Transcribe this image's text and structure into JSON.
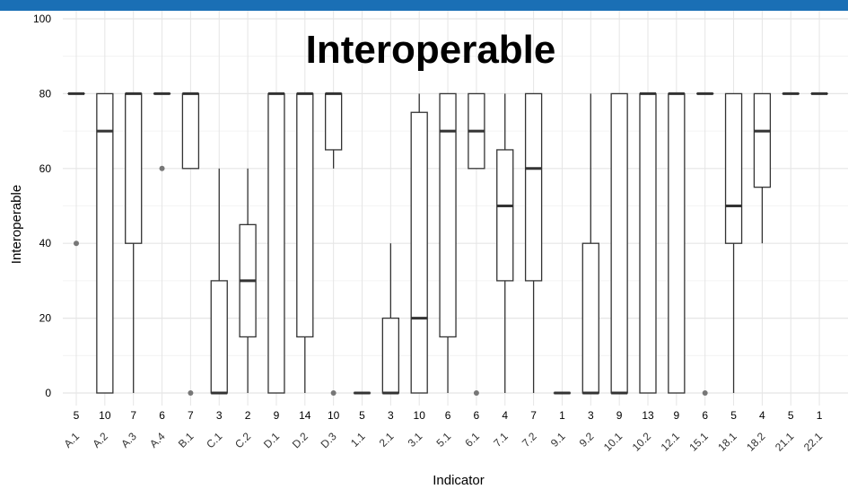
{
  "header": {
    "bar_color": "#1a6fb5"
  },
  "chart_data": {
    "type": "box",
    "title": "Interoperable",
    "xlabel": "Indicator",
    "ylabel": "Interoperable",
    "ylim": [
      0,
      100
    ],
    "yticks": [
      0,
      20,
      40,
      60,
      80,
      100
    ],
    "grid": true,
    "categories": [
      "A.1",
      "A.2",
      "A.3",
      "A.4",
      "B.1",
      "C.1",
      "C.2",
      "D.1",
      "D.2",
      "D.3",
      "1.1",
      "2.1",
      "3.1",
      "5.1",
      "6.1",
      "7.1",
      "7.2",
      "9.1",
      "9.2",
      "10.1",
      "10.2",
      "12.1",
      "15.1",
      "18.1",
      "18.2",
      "21.1",
      "22.1"
    ],
    "counts": [
      "5",
      "10",
      "7",
      "6",
      "7",
      "3",
      "2",
      "9",
      "14",
      "10",
      "5",
      "3",
      "10",
      "6",
      "6",
      "4",
      "7",
      "1",
      "3",
      "9",
      "13",
      "9",
      "6",
      "5",
      "4",
      "5",
      "1"
    ],
    "boxes": [
      {
        "q1": 80,
        "median": 80,
        "q3": 80,
        "whisker_low": 80,
        "whisker_high": 80,
        "outliers": [
          40
        ]
      },
      {
        "q1": 0,
        "median": 70,
        "q3": 80,
        "whisker_low": 0,
        "whisker_high": 80,
        "outliers": []
      },
      {
        "q1": 40,
        "median": 80,
        "q3": 80,
        "whisker_low": 0,
        "whisker_high": 80,
        "outliers": []
      },
      {
        "q1": 80,
        "median": 80,
        "q3": 80,
        "whisker_low": 80,
        "whisker_high": 80,
        "outliers": [
          60
        ]
      },
      {
        "q1": 60,
        "median": 80,
        "q3": 80,
        "whisker_low": 60,
        "whisker_high": 80,
        "outliers": [
          0
        ]
      },
      {
        "q1": 0,
        "median": 0,
        "q3": 30,
        "whisker_low": 0,
        "whisker_high": 60,
        "outliers": []
      },
      {
        "q1": 15,
        "median": 30,
        "q3": 45,
        "whisker_low": 0,
        "whisker_high": 60,
        "outliers": []
      },
      {
        "q1": 0,
        "median": 80,
        "q3": 80,
        "whisker_low": 0,
        "whisker_high": 80,
        "outliers": []
      },
      {
        "q1": 15,
        "median": 80,
        "q3": 80,
        "whisker_low": 0,
        "whisker_high": 80,
        "outliers": []
      },
      {
        "q1": 65,
        "median": 80,
        "q3": 80,
        "whisker_low": 60,
        "whisker_high": 80,
        "outliers": [
          0
        ]
      },
      {
        "q1": 0,
        "median": 0,
        "q3": 0,
        "whisker_low": 0,
        "whisker_high": 0,
        "outliers": []
      },
      {
        "q1": 0,
        "median": 0,
        "q3": 20,
        "whisker_low": 0,
        "whisker_high": 40,
        "outliers": []
      },
      {
        "q1": 0,
        "median": 20,
        "q3": 75,
        "whisker_low": 0,
        "whisker_high": 80,
        "outliers": []
      },
      {
        "q1": 15,
        "median": 70,
        "q3": 80,
        "whisker_low": 0,
        "whisker_high": 80,
        "outliers": []
      },
      {
        "q1": 60,
        "median": 70,
        "q3": 80,
        "whisker_low": 60,
        "whisker_high": 80,
        "outliers": [
          0
        ]
      },
      {
        "q1": 30,
        "median": 50,
        "q3": 65,
        "whisker_low": 0,
        "whisker_high": 80,
        "outliers": []
      },
      {
        "q1": 30,
        "median": 60,
        "q3": 80,
        "whisker_low": 0,
        "whisker_high": 80,
        "outliers": []
      },
      {
        "q1": 0,
        "median": 0,
        "q3": 0,
        "whisker_low": 0,
        "whisker_high": 0,
        "outliers": []
      },
      {
        "q1": 0,
        "median": 0,
        "q3": 40,
        "whisker_low": 0,
        "whisker_high": 80,
        "outliers": []
      },
      {
        "q1": 0,
        "median": 0,
        "q3": 80,
        "whisker_low": 0,
        "whisker_high": 80,
        "outliers": []
      },
      {
        "q1": 0,
        "median": 80,
        "q3": 80,
        "whisker_low": 0,
        "whisker_high": 80,
        "outliers": []
      },
      {
        "q1": 0,
        "median": 80,
        "q3": 80,
        "whisker_low": 0,
        "whisker_high": 80,
        "outliers": []
      },
      {
        "q1": 80,
        "median": 80,
        "q3": 80,
        "whisker_low": 80,
        "whisker_high": 80,
        "outliers": [
          0
        ]
      },
      {
        "q1": 40,
        "median": 50,
        "q3": 80,
        "whisker_low": 0,
        "whisker_high": 80,
        "outliers": []
      },
      {
        "q1": 55,
        "median": 70,
        "q3": 80,
        "whisker_low": 40,
        "whisker_high": 80,
        "outliers": []
      },
      {
        "q1": 80,
        "median": 80,
        "q3": 80,
        "whisker_low": 80,
        "whisker_high": 80,
        "outliers": []
      },
      {
        "q1": 80,
        "median": 80,
        "q3": 80,
        "whisker_low": 80,
        "whisker_high": 80,
        "outliers": []
      }
    ],
    "colors": {
      "box_stroke": "#333333",
      "grid": "#e5e5e5",
      "outlier": "#777777"
    }
  }
}
